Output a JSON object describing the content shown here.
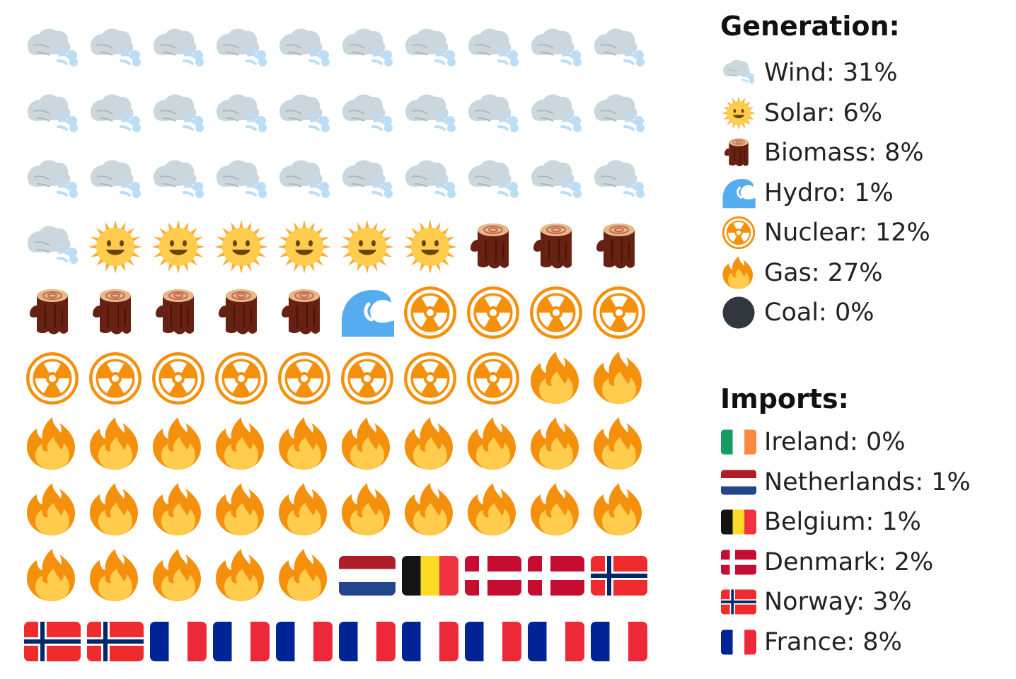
{
  "chart_data": {
    "type": "waffle",
    "grid": {
      "rows": 10,
      "cols": 10
    },
    "generation": {
      "title": "Generation:",
      "items": [
        {
          "key": "wind",
          "label": "Wind: 31%",
          "value": 31,
          "icon": "wind-icon"
        },
        {
          "key": "solar",
          "label": "Solar: 6%",
          "value": 6,
          "icon": "sun-icon"
        },
        {
          "key": "biomass",
          "label": "Biomass: 8%",
          "value": 8,
          "icon": "log-icon"
        },
        {
          "key": "hydro",
          "label": "Hydro: 1%",
          "value": 1,
          "icon": "wave-icon"
        },
        {
          "key": "nuclear",
          "label": "Nuclear: 12%",
          "value": 12,
          "icon": "radioactive-icon"
        },
        {
          "key": "gas",
          "label": "Gas: 27%",
          "value": 27,
          "icon": "fire-icon"
        },
        {
          "key": "coal",
          "label": "Coal: 0%",
          "value": 0,
          "icon": "black-circle-icon"
        }
      ]
    },
    "imports": {
      "title": "Imports:",
      "items": [
        {
          "key": "ireland",
          "label": "Ireland: 0%",
          "value": 0,
          "icon": "flag-ireland-icon"
        },
        {
          "key": "netherlands",
          "label": "Netherlands: 1%",
          "value": 1,
          "icon": "flag-netherlands-icon"
        },
        {
          "key": "belgium",
          "label": "Belgium: 1%",
          "value": 1,
          "icon": "flag-belgium-icon"
        },
        {
          "key": "denmark",
          "label": "Denmark: 2%",
          "value": 2,
          "icon": "flag-denmark-icon"
        },
        {
          "key": "norway",
          "label": "Norway: 3%",
          "value": 3,
          "icon": "flag-norway-icon"
        },
        {
          "key": "france",
          "label": "France: 8%",
          "value": 8,
          "icon": "flag-france-icon"
        }
      ]
    },
    "colors": {
      "wind_cloud": "#ccd6dd",
      "wind_air": "#bbddf5",
      "sun": "#ffcc4d",
      "sun_rays": "#ffac33",
      "log_bark": "#662113",
      "log_top": "#e6b887",
      "wave": "#55acee",
      "nuclear": "#f4900c",
      "fire_outer": "#f4900c",
      "fire_inner": "#ffcc4d",
      "coal": "#31373d",
      "ireland": [
        "#169b62",
        "#ffffff",
        "#ff883e"
      ],
      "netherlands": [
        "#ae1c28",
        "#ffffff",
        "#21468b"
      ],
      "belgium": [
        "#141414",
        "#fdda24",
        "#ef3340"
      ],
      "denmark": [
        "#c60c30",
        "#ffffff"
      ],
      "norway": [
        "#ef2b2d",
        "#ffffff",
        "#002868"
      ],
      "france": [
        "#002395",
        "#ffffff",
        "#ed2939"
      ]
    }
  }
}
